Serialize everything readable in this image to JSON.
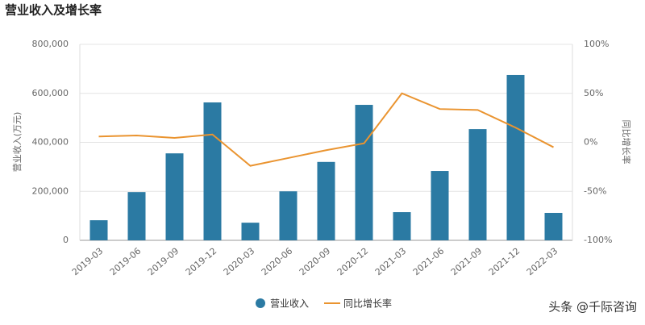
{
  "chart_data": {
    "type": "bar_line",
    "title": "营业收入及增长率",
    "categories": [
      "2019-03",
      "2019-06",
      "2019-09",
      "2019-12",
      "2020-03",
      "2020-06",
      "2020-09",
      "2020-12",
      "2021-03",
      "2021-06",
      "2021-09",
      "2021-12",
      "2022-03"
    ],
    "y_label": "营业收入(万元)",
    "y2_label": "同比增长率",
    "series": [
      {
        "name": "营业收入",
        "color": "#2b7aa3",
        "values": [
          82000,
          197000,
          355000,
          563000,
          72000,
          200000,
          320000,
          553000,
          115000,
          283000,
          454000,
          675000,
          112000
        ]
      },
      {
        "name": "同比增长率",
        "color": "#ea9430",
        "axis": "y2",
        "values": [
          6,
          7,
          4.5,
          8,
          -24,
          -16,
          -8,
          -1,
          50,
          34,
          33,
          15,
          -5
        ]
      }
    ],
    "ylim": [
      0,
      800000
    ],
    "yticks": [
      0,
      {
        "value": 200000,
        "label": "200,000"
      },
      {
        "value": 400000,
        "label": "400,000"
      },
      {
        "value": 600000,
        "label": "600,000"
      },
      {
        "value": 800000,
        "label": "800,000"
      }
    ],
    "y2lim": [
      -100,
      100
    ],
    "y2ticks": [
      {
        "value": -100,
        "label": "-100%"
      },
      {
        "value": -50,
        "label": "-50%"
      },
      {
        "value": 0,
        "label": "0%"
      },
      {
        "value": 50,
        "label": "50%"
      },
      {
        "value": 100,
        "label": "100%"
      }
    ],
    "grid": true,
    "footer": "头条 @千际咨询"
  }
}
